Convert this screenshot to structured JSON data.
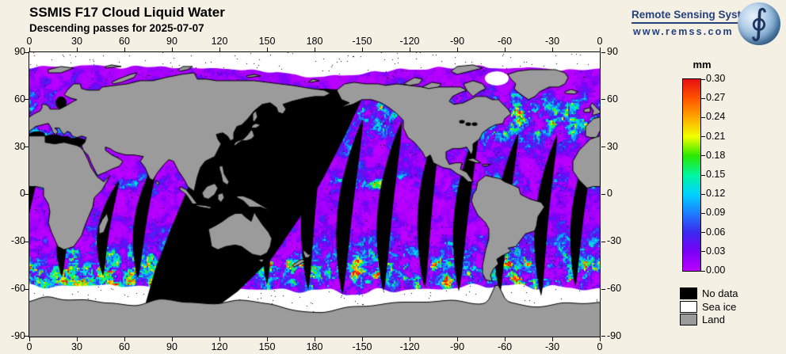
{
  "header": {
    "title": "SSMIS F17 Cloud Liquid Water",
    "subtitle": "Descending passes for 2025-07-07"
  },
  "logo": {
    "name": "Remote Sensing Systems",
    "website": "www.remss.com"
  },
  "axes": {
    "lon_labels": [
      "0",
      "30",
      "60",
      "90",
      "120",
      "150",
      "180",
      "-150",
      "-120",
      "-90",
      "-60",
      "-30",
      "0"
    ],
    "lat_labels": [
      "90",
      "60",
      "30",
      "0",
      "-30",
      "-60",
      "-90"
    ]
  },
  "colorbar": {
    "unit": "mm",
    "tick_labels": [
      "0.30",
      "0.27",
      "0.24",
      "0.21",
      "0.18",
      "0.15",
      "0.12",
      "0.09",
      "0.06",
      "0.03",
      "0.00"
    ],
    "stops": [
      {
        "value": 0.0,
        "color": "#bb00ff"
      },
      {
        "value": 0.03,
        "color": "#7a00f7"
      },
      {
        "value": 0.06,
        "color": "#3c28f0"
      },
      {
        "value": 0.09,
        "color": "#1e7dff"
      },
      {
        "value": 0.12,
        "color": "#00d2ff"
      },
      {
        "value": 0.15,
        "color": "#00f7a0"
      },
      {
        "value": 0.18,
        "color": "#2ae800"
      },
      {
        "value": 0.21,
        "color": "#f2ff00"
      },
      {
        "value": 0.24,
        "color": "#ffa800"
      },
      {
        "value": 0.27,
        "color": "#ff5200"
      },
      {
        "value": 0.3,
        "color": "#e81010"
      }
    ]
  },
  "legend": {
    "items": [
      {
        "label": "No data",
        "color": "#000000"
      },
      {
        "label": "Sea ice",
        "color": "#ffffff"
      },
      {
        "label": "Land",
        "color": "#9b9b9b"
      }
    ]
  },
  "colors": {
    "background": "#f5f0e4",
    "land": "#9b9b9b",
    "sea_ice": "#ffffff",
    "no_data": "#000000",
    "frame": "#000000",
    "logo_text": "#26407c"
  }
}
